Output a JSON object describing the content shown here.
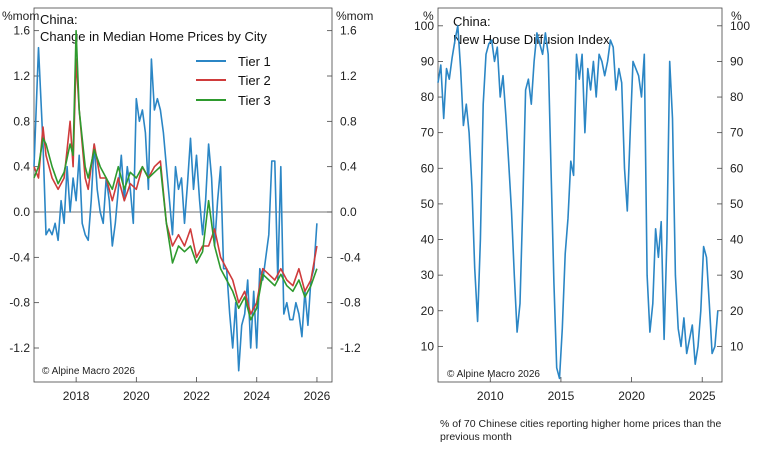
{
  "chart_data": [
    {
      "type": "line",
      "title": "China:",
      "subtitle": "Change in Median Home Prices by City",
      "ylabel_left": "%mom",
      "ylabel_right": "%mom",
      "ylim": [
        -1.5,
        1.8
      ],
      "xlim": [
        2016.6,
        2026.5
      ],
      "yticks": [
        "1.6",
        "1.2",
        "0.8",
        "0.4",
        "0.0",
        "-0.4",
        "-0.8",
        "-1.2"
      ],
      "ytick_values": [
        1.6,
        1.2,
        0.8,
        0.4,
        0.0,
        -0.4,
        -0.8,
        -1.2
      ],
      "xticks": [
        "2018",
        "2020",
        "2022",
        "2024",
        "2026"
      ],
      "xtick_values": [
        2018,
        2020,
        2022,
        2024,
        2026
      ],
      "zero_line": true,
      "legend_position": "top-right",
      "source": "© Alpine Macro 2026",
      "series": [
        {
          "name": "Tier 1",
          "color": "#2b86c5",
          "x": [
            2016.6,
            2016.75,
            2016.9,
            2017.0,
            2017.1,
            2017.2,
            2017.3,
            2017.4,
            2017.5,
            2017.6,
            2017.7,
            2017.8,
            2017.9,
            2018.0,
            2018.1,
            2018.2,
            2018.3,
            2018.4,
            2018.5,
            2018.6,
            2018.7,
            2018.8,
            2018.9,
            2019.0,
            2019.1,
            2019.2,
            2019.3,
            2019.4,
            2019.5,
            2019.6,
            2019.7,
            2019.8,
            2019.9,
            2020.0,
            2020.1,
            2020.2,
            2020.3,
            2020.4,
            2020.5,
            2020.6,
            2020.7,
            2020.8,
            2020.9,
            2021.0,
            2021.1,
            2021.2,
            2021.3,
            2021.4,
            2021.5,
            2021.6,
            2021.7,
            2021.8,
            2021.9,
            2022.0,
            2022.1,
            2022.2,
            2022.3,
            2022.4,
            2022.5,
            2022.6,
            2022.7,
            2022.8,
            2022.9,
            2023.0,
            2023.1,
            2023.2,
            2023.3,
            2023.4,
            2023.5,
            2023.6,
            2023.7,
            2023.8,
            2023.9,
            2024.0,
            2024.1,
            2024.2,
            2024.3,
            2024.4,
            2024.5,
            2024.6,
            2024.7,
            2024.8,
            2024.9,
            2025.0,
            2025.1,
            2025.2,
            2025.3,
            2025.4,
            2025.5,
            2025.6,
            2025.7,
            2025.8,
            2025.9,
            2026.0
          ],
          "values": [
            0.4,
            1.45,
            0.6,
            -0.2,
            -0.15,
            -0.2,
            -0.1,
            -0.25,
            0.1,
            -0.1,
            0.4,
            0.0,
            0.3,
            0.1,
            0.5,
            -0.1,
            -0.2,
            -0.25,
            0.1,
            0.6,
            0.2,
            0.0,
            -0.1,
            0.3,
            0.1,
            -0.3,
            -0.1,
            0.2,
            0.5,
            0.1,
            0.4,
            0.2,
            -0.1,
            1.0,
            0.8,
            0.9,
            0.7,
            0.2,
            1.35,
            0.9,
            1.0,
            0.9,
            0.7,
            0.4,
            0.1,
            -0.2,
            0.4,
            0.2,
            0.3,
            -0.1,
            0.25,
            0.65,
            0.2,
            0.5,
            0.1,
            -0.2,
            0.1,
            0.6,
            0.3,
            -0.3,
            0.1,
            0.4,
            -0.5,
            -0.5,
            -0.9,
            -1.2,
            -0.8,
            -1.4,
            -1.0,
            -0.9,
            -0.6,
            -1.2,
            -0.7,
            -1.2,
            -0.5,
            -0.6,
            -0.4,
            -0.2,
            0.45,
            0.45,
            -0.6,
            0.4,
            -0.9,
            -0.8,
            -0.95,
            -0.95,
            -0.8,
            -0.9,
            -1.1,
            -0.7,
            -1.0,
            -0.6,
            -0.5,
            -0.1
          ]
        },
        {
          "name": "Tier 2",
          "color": "#cf3b3b",
          "x": [
            2016.6,
            2016.75,
            2016.9,
            2017.0,
            2017.2,
            2017.4,
            2017.6,
            2017.8,
            2017.9,
            2018.0,
            2018.1,
            2018.3,
            2018.4,
            2018.6,
            2018.8,
            2019.0,
            2019.2,
            2019.4,
            2019.6,
            2019.8,
            2020.0,
            2020.2,
            2020.4,
            2020.6,
            2020.8,
            2021.0,
            2021.2,
            2021.4,
            2021.6,
            2021.8,
            2022.0,
            2022.2,
            2022.4,
            2022.6,
            2022.8,
            2023.0,
            2023.2,
            2023.4,
            2023.6,
            2023.8,
            2024.0,
            2024.2,
            2024.4,
            2024.6,
            2024.8,
            2025.0,
            2025.2,
            2025.4,
            2025.6,
            2025.8,
            2026.0
          ],
          "values": [
            0.4,
            0.3,
            0.75,
            0.5,
            0.3,
            0.2,
            0.3,
            0.8,
            0.4,
            1.35,
            0.9,
            0.3,
            0.2,
            0.6,
            0.3,
            0.3,
            0.1,
            0.3,
            0.1,
            0.25,
            0.2,
            0.4,
            0.3,
            0.4,
            0.45,
            -0.1,
            -0.3,
            -0.2,
            -0.3,
            -0.15,
            -0.4,
            -0.3,
            -0.3,
            -0.15,
            -0.4,
            -0.5,
            -0.6,
            -0.8,
            -0.7,
            -0.9,
            -0.8,
            -0.5,
            -0.55,
            -0.6,
            -0.5,
            -0.6,
            -0.65,
            -0.5,
            -0.7,
            -0.6,
            -0.3
          ]
        },
        {
          "name": "Tier 3",
          "color": "#2e9a2e",
          "x": [
            2016.6,
            2016.75,
            2016.9,
            2017.0,
            2017.2,
            2017.4,
            2017.6,
            2017.8,
            2017.9,
            2018.0,
            2018.1,
            2018.3,
            2018.4,
            2018.6,
            2018.8,
            2019.0,
            2019.2,
            2019.4,
            2019.6,
            2019.8,
            2020.0,
            2020.2,
            2020.4,
            2020.6,
            2020.8,
            2021.0,
            2021.2,
            2021.4,
            2021.6,
            2021.8,
            2022.0,
            2022.2,
            2022.4,
            2022.6,
            2022.8,
            2023.0,
            2023.2,
            2023.4,
            2023.6,
            2023.8,
            2024.0,
            2024.2,
            2024.4,
            2024.6,
            2024.8,
            2025.0,
            2025.2,
            2025.4,
            2025.6,
            2025.8,
            2026.0
          ],
          "values": [
            0.3,
            0.4,
            0.65,
            0.6,
            0.4,
            0.25,
            0.35,
            0.6,
            0.5,
            1.6,
            0.9,
            0.4,
            0.3,
            0.55,
            0.4,
            0.3,
            0.2,
            0.4,
            0.2,
            0.35,
            0.3,
            0.4,
            0.3,
            0.35,
            0.4,
            -0.1,
            -0.45,
            -0.3,
            -0.35,
            -0.3,
            -0.45,
            -0.35,
            0.1,
            -0.3,
            -0.5,
            -0.6,
            -0.7,
            -0.85,
            -0.75,
            -0.95,
            -0.85,
            -0.55,
            -0.6,
            -0.65,
            -0.55,
            -0.65,
            -0.7,
            -0.6,
            -0.75,
            -0.65,
            -0.5
          ]
        }
      ]
    },
    {
      "type": "line",
      "title": "China:",
      "subtitle": "New House Diffusion Index",
      "ylabel_left": "%",
      "ylabel_right": "%",
      "ylim": [
        0,
        105
      ],
      "xlim": [
        2006.3,
        2026.4
      ],
      "yticks": [
        "100",
        "90",
        "80",
        "70",
        "60",
        "50",
        "40",
        "30",
        "20",
        "10"
      ],
      "ytick_values": [
        100,
        90,
        80,
        70,
        60,
        50,
        40,
        30,
        20,
        10
      ],
      "xticks": [
        "2010",
        "2015",
        "2020",
        "2025"
      ],
      "xtick_values": [
        2010,
        2015,
        2020,
        2025
      ],
      "source": "© Alpine Macro 2026",
      "note": "% of 70 Chinese cities reporting higher home prices than the previous month",
      "series": [
        {
          "name": "New House Diffusion Index",
          "color": "#2b86c5",
          "x": [
            2006.3,
            2006.5,
            2006.7,
            2006.9,
            2007.1,
            2007.3,
            2007.5,
            2007.7,
            2007.9,
            2008.1,
            2008.3,
            2008.5,
            2008.7,
            2008.9,
            2009.1,
            2009.3,
            2009.5,
            2009.7,
            2009.9,
            2010.1,
            2010.3,
            2010.5,
            2010.7,
            2010.9,
            2011.1,
            2011.3,
            2011.5,
            2011.7,
            2011.9,
            2012.1,
            2012.3,
            2012.5,
            2012.7,
            2012.9,
            2013.1,
            2013.3,
            2013.5,
            2013.7,
            2013.9,
            2014.1,
            2014.3,
            2014.5,
            2014.7,
            2014.9,
            2015.1,
            2015.3,
            2015.5,
            2015.7,
            2015.9,
            2016.1,
            2016.3,
            2016.5,
            2016.7,
            2016.9,
            2017.1,
            2017.3,
            2017.5,
            2017.7,
            2017.9,
            2018.1,
            2018.3,
            2018.5,
            2018.7,
            2018.9,
            2019.1,
            2019.3,
            2019.5,
            2019.7,
            2019.9,
            2020.1,
            2020.3,
            2020.5,
            2020.7,
            2020.9,
            2021.1,
            2021.3,
            2021.5,
            2021.7,
            2021.9,
            2022.1,
            2022.3,
            2022.5,
            2022.7,
            2022.9,
            2023.1,
            2023.3,
            2023.5,
            2023.7,
            2023.9,
            2024.1,
            2024.3,
            2024.5,
            2024.7,
            2024.9,
            2025.1,
            2025.3,
            2025.5,
            2025.7,
            2025.9,
            2026.1
          ],
          "values": [
            84,
            89,
            74,
            88,
            85,
            91,
            96,
            100,
            88,
            72,
            78,
            70,
            55,
            32,
            17,
            40,
            78,
            92,
            95,
            96,
            90,
            94,
            80,
            86,
            75,
            62,
            48,
            30,
            14,
            22,
            50,
            82,
            85,
            78,
            90,
            98,
            95,
            92,
            98,
            92,
            60,
            28,
            4,
            1,
            15,
            36,
            46,
            62,
            58,
            92,
            85,
            92,
            70,
            88,
            82,
            90,
            80,
            92,
            90,
            86,
            90,
            96,
            94,
            82,
            88,
            84,
            60,
            48,
            70,
            90,
            88,
            86,
            80,
            92,
            30,
            14,
            22,
            43,
            35,
            45,
            12,
            40,
            90,
            74,
            30,
            15,
            10,
            18,
            8,
            12,
            16,
            5,
            10,
            20,
            38,
            35,
            22,
            8,
            10,
            20
          ]
        }
      ]
    }
  ]
}
